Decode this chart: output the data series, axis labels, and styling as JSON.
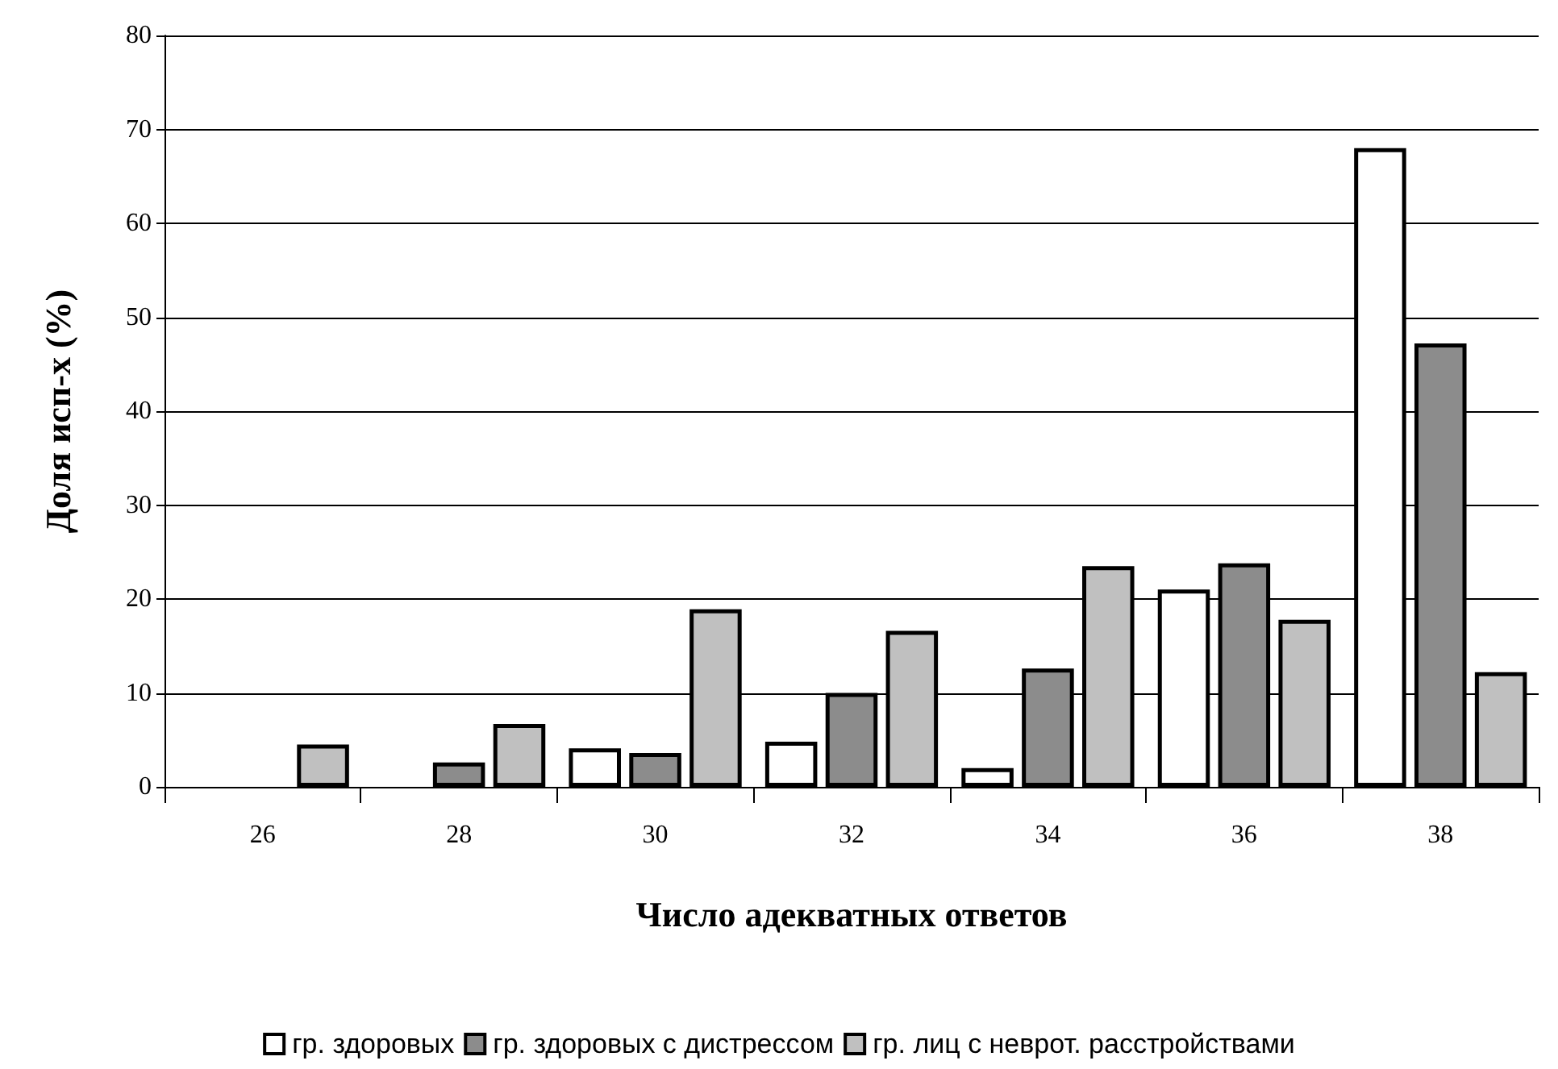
{
  "chart_data": {
    "type": "bar",
    "xlabel": "Число адекватных ответов",
    "ylabel": "Доля исп-х (%)",
    "categories": [
      "26",
      "28",
      "30",
      "32",
      "34",
      "36",
      "38"
    ],
    "series": [
      {
        "name": "гр. здоровых",
        "color": "#ffffff",
        "values": [
          null,
          null,
          4.1,
          4.8,
          2,
          21,
          68
        ]
      },
      {
        "name": "гр. здоровых с дистрессом",
        "color": "#8c8c8c",
        "values": [
          null,
          2.6,
          3.6,
          10,
          12.6,
          23.8,
          47.2
        ]
      },
      {
        "name": "гр. лиц с неврот. расстройствами",
        "color": "#c0c0c0",
        "values": [
          4.5,
          6.7,
          18.9,
          16.6,
          23.5,
          17.8,
          12.2
        ]
      }
    ],
    "ylim": [
      0,
      80
    ],
    "yticks": [
      0,
      10,
      20,
      30,
      40,
      50,
      60,
      70,
      80
    ],
    "grid": "y",
    "legend": "bottom"
  }
}
